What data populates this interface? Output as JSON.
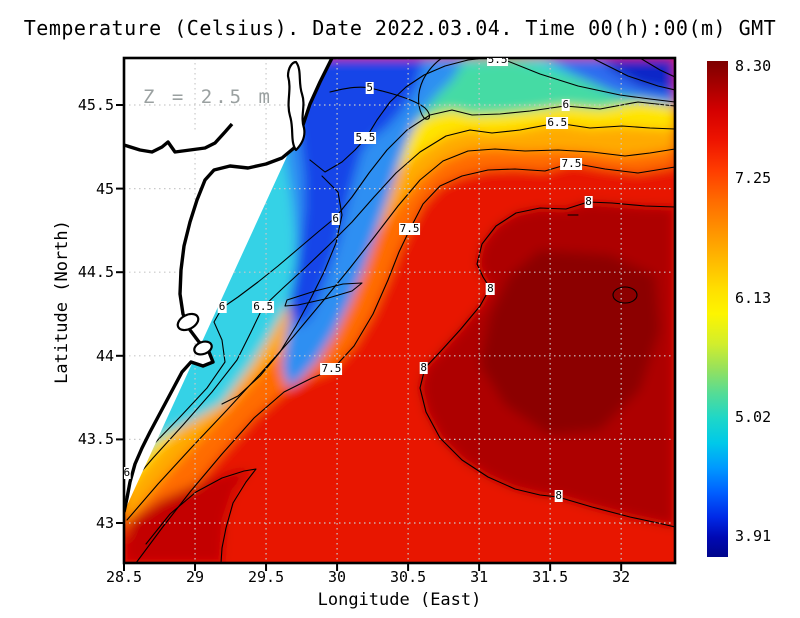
{
  "title": "Temperature (Celsius). Date 2022.03.04. Time 00(h):00(m) GMT",
  "annotation": {
    "text": "Z = 2.5 m",
    "color": "#9aa0a0"
  },
  "axes": {
    "x": {
      "label": "Longitude (East)",
      "ticks": [
        28.5,
        29,
        29.5,
        30,
        30.5,
        31,
        31.5,
        32
      ],
      "tick_labels": [
        "28.5",
        "29",
        "29.5",
        "30",
        "30.5",
        "31",
        "31.5",
        "32"
      ]
    },
    "y": {
      "label": "Latitude (North)",
      "ticks": [
        45.5,
        45,
        44.5,
        44,
        43.5,
        43
      ],
      "tick_labels": [
        "45.5",
        "45",
        "44.5",
        "44",
        "43.5",
        "43"
      ]
    }
  },
  "colorbar": {
    "min": 3.91,
    "max": 8.3,
    "colormap": "jet",
    "labels": [
      {
        "text": "8.30",
        "value": 8.3
      },
      {
        "text": "7.25",
        "value": 7.25
      },
      {
        "text": "6.13",
        "value": 6.13
      },
      {
        "text": "5.02",
        "value": 5.02
      },
      {
        "text": "3.91",
        "value": 3.91
      }
    ]
  },
  "chart_data": {
    "type": "heatmap",
    "title": "Temperature (Celsius). Date 2022.03.04. Time 00(h):00(m) GMT",
    "variable": "Sea water temperature",
    "units": "Celsius",
    "date": "2022.03.04",
    "time": "00(h):00(m) GMT",
    "depth_m": 2.5,
    "xlabel": "Longitude (East)",
    "ylabel": "Latitude (North)",
    "xlim": [
      28.5,
      32.37
    ],
    "ylim": [
      42.76,
      45.78
    ],
    "value_range": [
      3.91,
      8.3
    ],
    "grid": true,
    "legend_position": "right-colorbar",
    "contour_interval": 0.5,
    "contour_levels": [
      4.5,
      5,
      5.5,
      6,
      6.5,
      7,
      7.5,
      8
    ],
    "contour_labels": [
      {
        "value": "5.5",
        "lon": 31.13,
        "lat": 45.77
      },
      {
        "value": "5",
        "lon": 30.23,
        "lat": 45.6
      },
      {
        "value": "5.5",
        "lon": 30.2,
        "lat": 45.3
      },
      {
        "value": "6",
        "lon": 31.61,
        "lat": 45.5
      },
      {
        "value": "6.5",
        "lon": 31.55,
        "lat": 45.39
      },
      {
        "value": "7.5",
        "lon": 31.65,
        "lat": 45.15
      },
      {
        "value": "8",
        "lon": 31.77,
        "lat": 44.92
      },
      {
        "value": "6",
        "lon": 29.99,
        "lat": 44.82
      },
      {
        "value": "7.5",
        "lon": 30.51,
        "lat": 44.76
      },
      {
        "value": "8",
        "lon": 31.08,
        "lat": 44.4
      },
      {
        "value": "6.5",
        "lon": 29.48,
        "lat": 44.29
      },
      {
        "value": "6",
        "lon": 29.19,
        "lat": 44.29
      },
      {
        "value": "7.5",
        "lon": 29.96,
        "lat": 43.92
      },
      {
        "value": "8",
        "lon": 30.61,
        "lat": 43.93
      },
      {
        "value": "6",
        "lon": 28.52,
        "lat": 43.3
      },
      {
        "value": "8",
        "lon": 31.56,
        "lat": 43.16
      }
    ],
    "field_description": "Cold water (4-5.5 C, blue/cyan) along the northwest coast and top-right corner; temperature increases southeastward through green, yellow and orange bands to a warm core above 8 C (dark red) centred near 31.3E 44.2N; land shown white with black coastline."
  }
}
